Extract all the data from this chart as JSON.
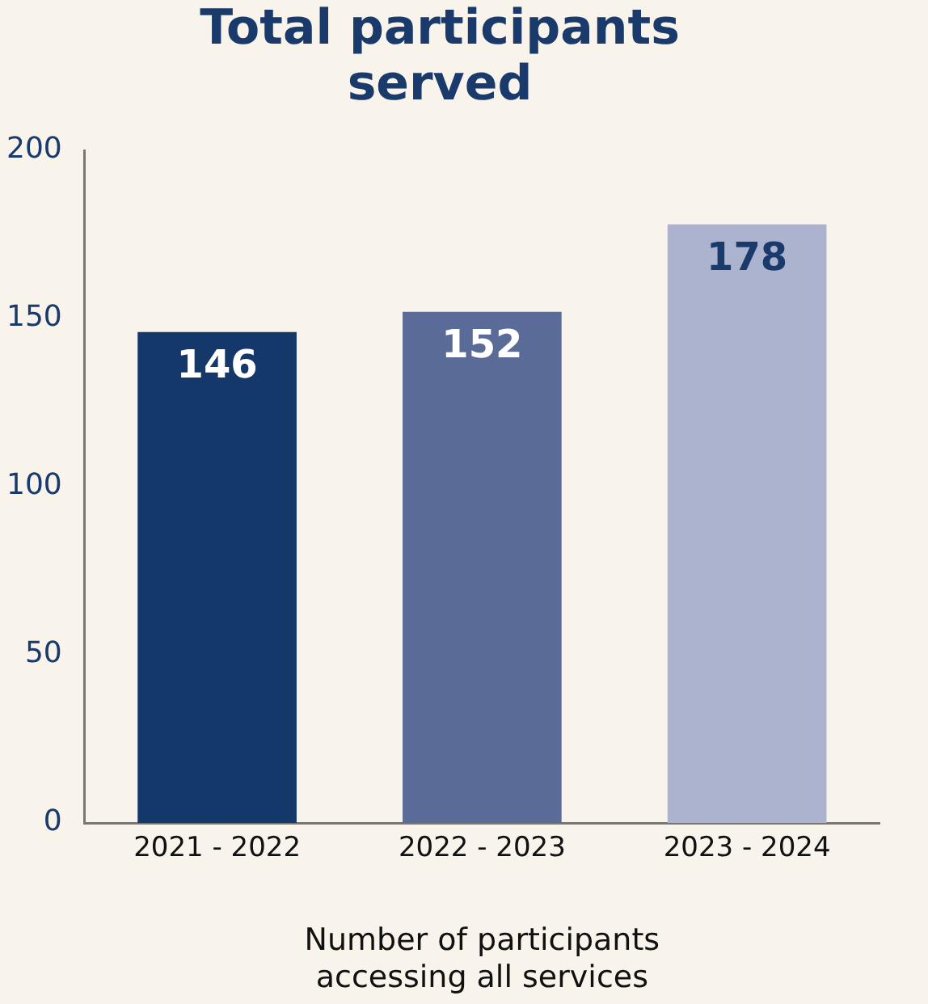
{
  "chart_data": {
    "type": "bar",
    "title": "Total participants\nserved",
    "xlabel": "Number of participants\naccessing all services",
    "categories": [
      "2021 - 2022",
      "2022 - 2023",
      "2023 - 2024"
    ],
    "values": [
      146,
      152,
      178
    ],
    "colors": [
      "#14386a",
      "#5b6b97",
      "#abb3cf"
    ],
    "ylim": [
      0,
      200
    ],
    "yticks": [
      0,
      50,
      100,
      150,
      200
    ],
    "grid": false,
    "legend": false,
    "data_labels": true
  }
}
